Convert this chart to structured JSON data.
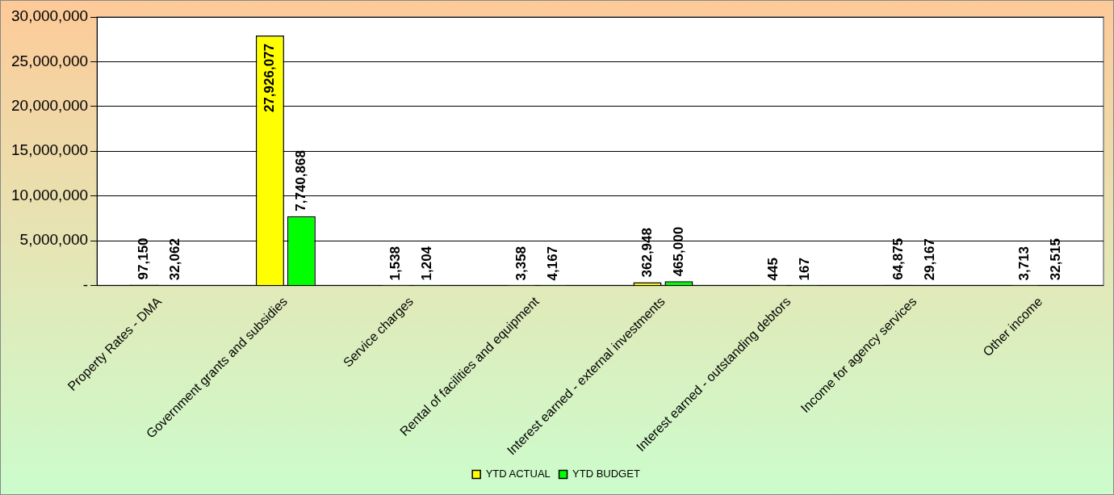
{
  "chart_data": {
    "type": "bar",
    "categories": [
      "Property Rates - DMA",
      "Government grants and subsidies",
      "Service charges",
      "Rental of facilities and equipment",
      "Interest earned - external investments",
      "Interest earned - outstanding debtors",
      "Income for agency services",
      "Other income"
    ],
    "series": [
      {
        "name": "YTD ACTUAL",
        "color": "#ffff00",
        "values": [
          97150,
          27926077,
          1538,
          3358,
          362948,
          445,
          64875,
          3713
        ],
        "value_labels": [
          "97,150",
          "27,926,077",
          "1,538",
          "3,358",
          "362,948",
          "445",
          "64,875",
          "3,713"
        ]
      },
      {
        "name": "YTD BUDGET",
        "color": "#00ff00",
        "values": [
          32062,
          7740868,
          1204,
          4167,
          465000,
          167,
          29167,
          32515
        ],
        "value_labels": [
          "32,062",
          "7,740,868",
          "1,204",
          "4,167",
          "465,000",
          "167",
          "29,167",
          "32,515"
        ]
      }
    ],
    "ylim": [
      0,
      30000000
    ],
    "yticks": [
      {
        "value": 0,
        "label": "-"
      },
      {
        "value": 5000000,
        "label": "5,000,000"
      },
      {
        "value": 10000000,
        "label": "10,000,000"
      },
      {
        "value": 15000000,
        "label": "15,000,000"
      },
      {
        "value": 20000000,
        "label": "20,000,000"
      },
      {
        "value": 25000000,
        "label": "25,000,000"
      },
      {
        "value": 30000000,
        "label": "30,000,000"
      }
    ],
    "grid": "y",
    "legend": "bottom"
  }
}
